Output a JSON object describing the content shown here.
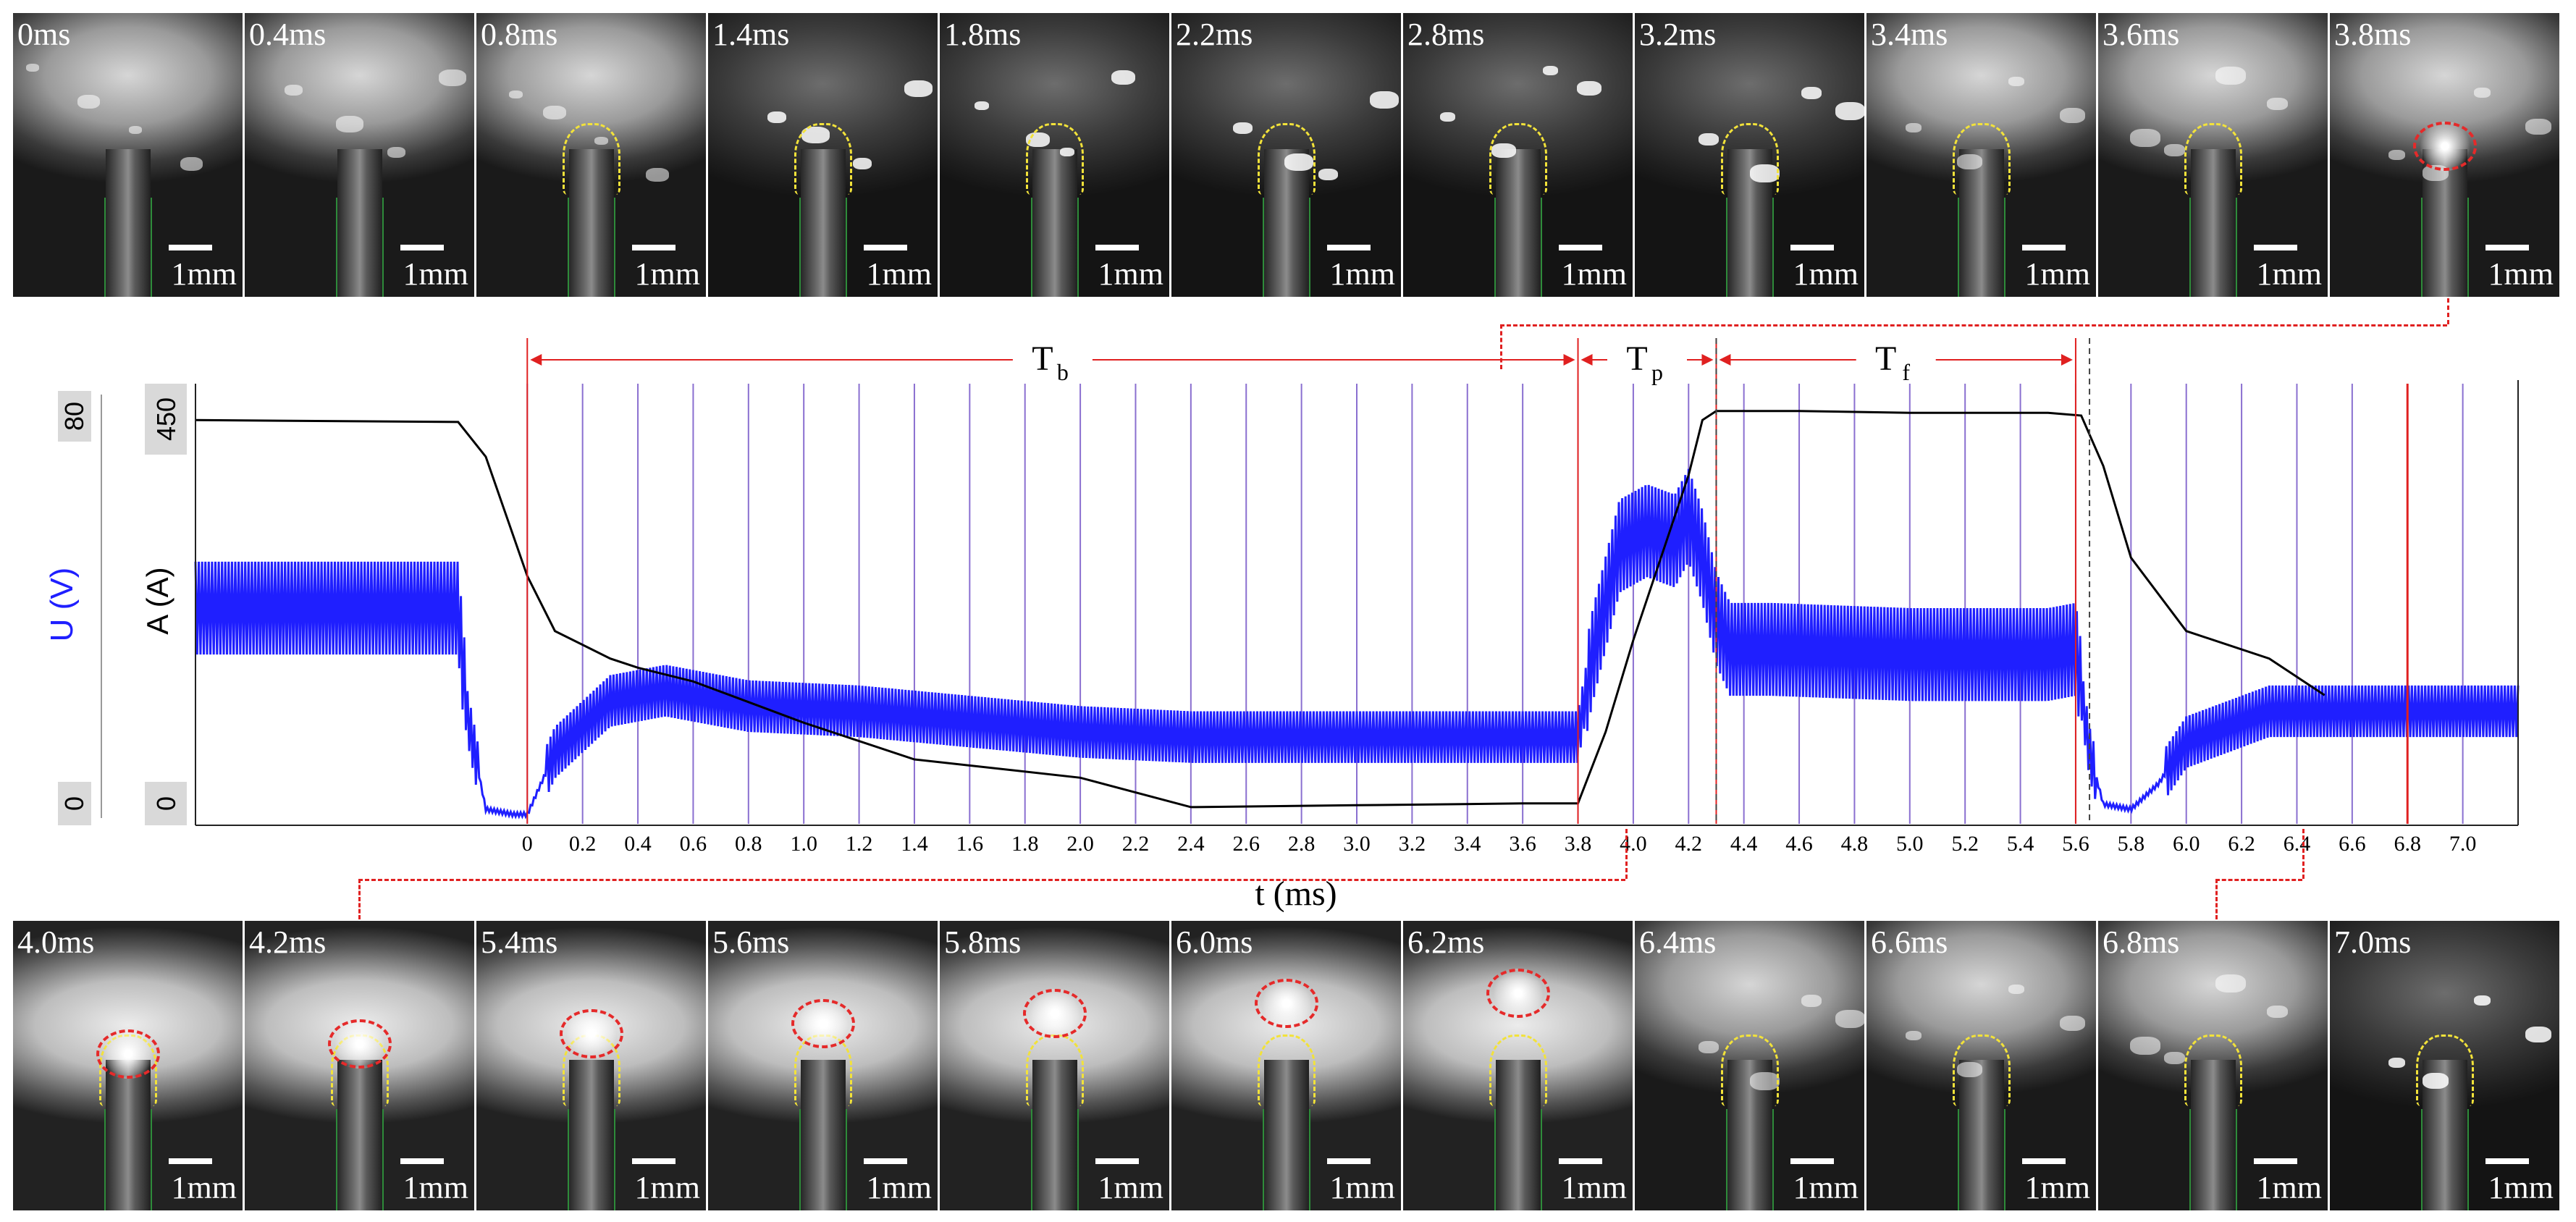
{
  "top_frames": [
    {
      "time": "0ms",
      "tone": "base",
      "tip": false,
      "drop": false
    },
    {
      "time": "0.4ms",
      "tone": "base",
      "tip": false,
      "drop": false
    },
    {
      "time": "0.8ms",
      "tone": "base",
      "tip": true,
      "drop": false
    },
    {
      "time": "1.4ms",
      "tone": "dark",
      "tip": true,
      "drop": false
    },
    {
      "time": "1.8ms",
      "tone": "dark",
      "tip": true,
      "drop": false
    },
    {
      "time": "2.2ms",
      "tone": "dark",
      "tip": true,
      "drop": false
    },
    {
      "time": "2.8ms",
      "tone": "dark",
      "tip": true,
      "drop": false
    },
    {
      "time": "3.2ms",
      "tone": "dark",
      "tip": true,
      "drop": false
    },
    {
      "time": "3.4ms",
      "tone": "base",
      "tip": true,
      "drop": false
    },
    {
      "time": "3.6ms",
      "tone": "base",
      "tip": true,
      "drop": false
    },
    {
      "time": "3.8ms",
      "tone": "base",
      "tip": false,
      "drop": true
    }
  ],
  "bottom_frames": [
    {
      "time": "4.0ms",
      "tone": "bright",
      "tip": true,
      "drop": true
    },
    {
      "time": "4.2ms",
      "tone": "bright",
      "tip": true,
      "drop": true
    },
    {
      "time": "5.4ms",
      "tone": "bright",
      "tip": true,
      "drop": true
    },
    {
      "time": "5.6ms",
      "tone": "bright",
      "tip": true,
      "drop": true
    },
    {
      "time": "5.8ms",
      "tone": "bright",
      "tip": true,
      "drop": true
    },
    {
      "time": "6.0ms",
      "tone": "bright",
      "tip": true,
      "drop": true
    },
    {
      "time": "6.2ms",
      "tone": "bright",
      "tip": true,
      "drop": true
    },
    {
      "time": "6.4ms",
      "tone": "base",
      "tip": true,
      "drop": false
    },
    {
      "time": "6.6ms",
      "tone": "base",
      "tip": true,
      "drop": false
    },
    {
      "time": "6.8ms",
      "tone": "base",
      "tip": true,
      "drop": false
    },
    {
      "time": "7.0ms",
      "tone": "dark",
      "tip": true,
      "drop": false
    }
  ],
  "scale_label": "1mm",
  "colors": {
    "current": "#000000",
    "voltage": "#1f1fff",
    "gridline": "#8a6fd0",
    "phase_marker": "#e02020",
    "tip_outline": "#f2e23a",
    "droplet_outline": "#e52a2a"
  },
  "chart_data": {
    "type": "line",
    "xlabel": "t (ms)",
    "x_ticks": [
      "0",
      "0.2",
      "0.4",
      "0.6",
      "0.8",
      "1.0",
      "1.2",
      "1.4",
      "1.6",
      "1.8",
      "2.0",
      "2.2",
      "2.4",
      "2.6",
      "2.8",
      "3.0",
      "3.2",
      "3.4",
      "3.6",
      "3.8",
      "4.0",
      "4.2",
      "4.4",
      "4.6",
      "4.8",
      "5.0",
      "5.2",
      "5.4",
      "5.6",
      "5.8",
      "6.0",
      "6.2",
      "6.4",
      "6.6",
      "6.8",
      "7.0"
    ],
    "xlim": [
      -1.2,
      7.2
    ],
    "left_axis": {
      "label": "U (V)",
      "range": [
        0,
        80
      ],
      "ticks": [
        "0",
        "80"
      ]
    },
    "right_axis": {
      "label": "A (A)",
      "range": [
        0,
        450
      ],
      "ticks": [
        "0",
        "450"
      ]
    },
    "phases": [
      {
        "label": "T",
        "sub": "b",
        "start": 0,
        "end": 3.8
      },
      {
        "label": "T",
        "sub": "p",
        "start": 3.8,
        "end": 4.3
      },
      {
        "label": "T",
        "sub": "f",
        "start": 4.3,
        "end": 5.6
      }
    ],
    "series": [
      {
        "name": "A (A)",
        "x": [
          -1.2,
          -0.25,
          -0.15,
          0.0,
          0.1,
          0.3,
          0.4,
          0.6,
          1.0,
          1.4,
          2.0,
          2.4,
          3.0,
          3.6,
          3.8,
          3.9,
          4.0,
          4.1,
          4.2,
          4.25,
          4.3,
          4.6,
          5.0,
          5.5,
          5.62,
          5.7,
          5.8,
          6.0,
          6.3,
          6.5
        ],
        "y": [
          430,
          428,
          390,
          260,
          200,
          170,
          160,
          145,
          100,
          60,
          40,
          8,
          10,
          12,
          12,
          90,
          190,
          280,
          370,
          430,
          440,
          440,
          438,
          438,
          435,
          380,
          280,
          200,
          170,
          130
        ]
      },
      {
        "name": "U (V)",
        "x": [
          -1.2,
          -0.25,
          -0.22,
          -0.15,
          -0.05,
          0.0,
          0.1,
          0.3,
          0.5,
          0.8,
          1.2,
          1.6,
          2.0,
          2.4,
          2.8,
          3.2,
          3.6,
          3.8,
          3.85,
          3.95,
          4.05,
          4.15,
          4.2,
          4.25,
          4.3,
          4.35,
          4.5,
          5.0,
          5.5,
          5.6,
          5.65,
          5.7,
          5.8,
          5.9,
          6.0,
          6.3,
          6.6,
          7.2
        ],
        "y": [
          40,
          40,
          20,
          1,
          0,
          0,
          12,
          22,
          24,
          21,
          20,
          18,
          16,
          15,
          15,
          15,
          15,
          15,
          30,
          52,
          55,
          53,
          58,
          50,
          38,
          32,
          32,
          31,
          31,
          32,
          12,
          2,
          1,
          6,
          14,
          20,
          20,
          20
        ]
      }
    ],
    "grid": true
  }
}
